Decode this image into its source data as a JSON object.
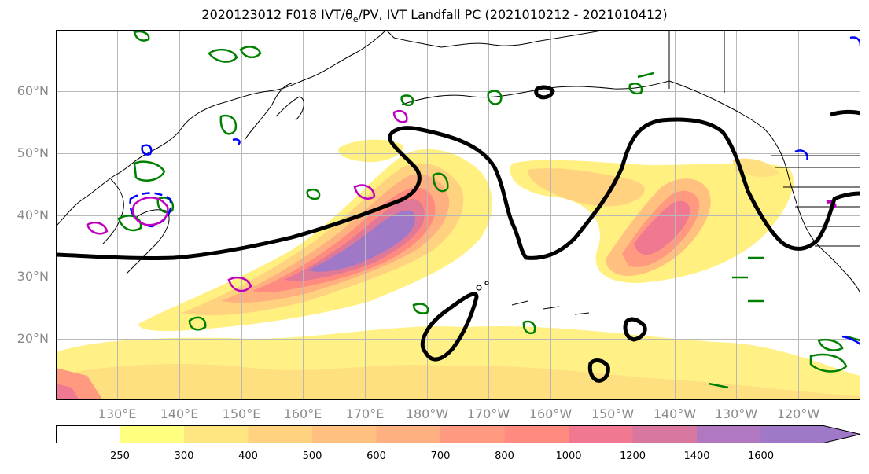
{
  "title": "2020123012 F018 IVT/θe/PV, IVT Landfall PC (2021010212 - 2021010412)",
  "title_parts": {
    "before": "2020123012 F018 IVT/",
    "theta": "θ",
    "sub": "e",
    "after": "/PV, IVT Landfall PC (2021010212 - 2021010412)"
  },
  "map": {
    "lat_labels": [
      "60°N",
      "50°N",
      "40°N",
      "30°N",
      "20°N"
    ],
    "lon_labels": [
      "130°E",
      "140°E",
      "150°E",
      "160°E",
      "170°E",
      "180°W",
      "170°W",
      "160°W",
      "150°W",
      "140°W",
      "130°W",
      "120°W"
    ],
    "extent": {
      "lon_min": 120,
      "lon_max": 250,
      "lat_min": 10,
      "lat_max": 70
    },
    "colors": {
      "land_outline": "#000000",
      "pv_contour": "#008000",
      "theta_contour_a": "#0000ff",
      "theta_contour_b": "#c000c0",
      "landfall_pc": "#000000"
    }
  },
  "colorbar": {
    "ticks": [
      "250",
      "300",
      "400",
      "500",
      "600",
      "700",
      "800",
      "1000",
      "1200",
      "1400",
      "1600"
    ],
    "colors": [
      "#ffffff",
      "#ffff80",
      "#ffe580",
      "#ffd280",
      "#ffc080",
      "#ffb080",
      "#ff9a80",
      "#ff8a80",
      "#f07890",
      "#d878a0",
      "#b078c0",
      "#a078c8"
    ]
  }
}
